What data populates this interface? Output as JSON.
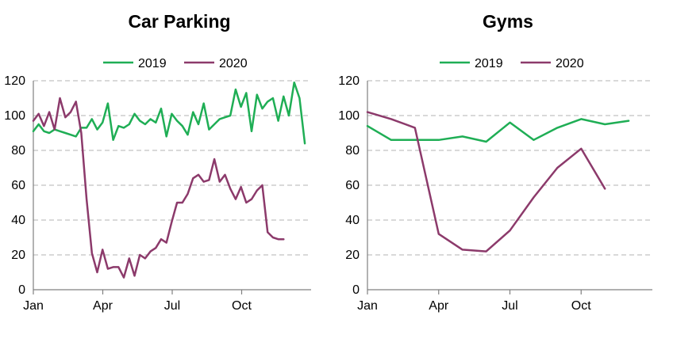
{
  "colors": {
    "s2019": "#1fae55",
    "s2020": "#8c3a6b"
  },
  "chart_data": [
    {
      "type": "line",
      "title": "Car Parking",
      "ylim": [
        0,
        120
      ],
      "yticks": [
        0,
        20,
        40,
        60,
        80,
        100,
        120
      ],
      "xlim": [
        0,
        12
      ],
      "xticks": [
        {
          "label": "Jan",
          "x": 0
        },
        {
          "label": "Apr",
          "x": 3
        },
        {
          "label": "Jul",
          "x": 6
        },
        {
          "label": "Oct",
          "x": 9
        }
      ],
      "grid": true,
      "legend_position": "top",
      "series": [
        {
          "name": "2019",
          "x": [
            0,
            0.23,
            0.46,
            0.69,
            0.92,
            1.15,
            1.38,
            1.61,
            1.84,
            2.07,
            2.3,
            2.53,
            2.76,
            2.99,
            3.22,
            3.45,
            3.68,
            3.91,
            4.14,
            4.37,
            4.6,
            4.83,
            5.06,
            5.29,
            5.52,
            5.75,
            5.98,
            6.21,
            6.44,
            6.67,
            6.9,
            7.13,
            7.36,
            7.59,
            7.82,
            8.05,
            8.28,
            8.51,
            8.74,
            8.97,
            9.2,
            9.43,
            9.66,
            9.89,
            10.12,
            10.35,
            10.58,
            10.81,
            11.04,
            11.27,
            11.5,
            11.73
          ],
          "values": [
            91,
            95,
            91,
            90,
            92,
            91,
            90,
            89,
            88,
            93,
            93,
            98,
            92,
            96,
            107,
            86,
            94,
            93,
            95,
            101,
            97,
            95,
            98,
            96,
            104,
            88,
            101,
            97,
            94,
            89,
            102,
            95,
            107,
            92,
            95,
            98,
            99,
            100,
            115,
            105,
            113,
            91,
            112,
            104,
            108,
            110,
            97,
            111,
            100,
            119,
            110,
            84
          ]
        },
        {
          "name": "2020",
          "x": [
            0,
            0.23,
            0.46,
            0.69,
            0.92,
            1.15,
            1.38,
            1.61,
            1.84,
            2.07,
            2.3,
            2.53,
            2.76,
            2.99,
            3.22,
            3.45,
            3.68,
            3.91,
            4.14,
            4.37,
            4.6,
            4.83,
            5.06,
            5.29,
            5.52,
            5.75,
            5.98,
            6.21,
            6.44,
            6.67,
            6.9,
            7.13,
            7.36,
            7.59,
            7.82,
            8.05,
            8.28,
            8.51,
            8.74,
            8.97,
            9.2,
            9.43,
            9.66,
            9.89,
            10.12,
            10.35,
            10.58,
            10.81
          ],
          "values": [
            97,
            101,
            94,
            102,
            92,
            110,
            99,
            102,
            108,
            90,
            52,
            21,
            10,
            23,
            12,
            13,
            13,
            7,
            18,
            8,
            20,
            18,
            22,
            24,
            29,
            27,
            39,
            50,
            50,
            55,
            64,
            66,
            62,
            63,
            75,
            62,
            66,
            58,
            52,
            59,
            50,
            52,
            57,
            60,
            33,
            30,
            29,
            29
          ]
        }
      ]
    },
    {
      "type": "line",
      "title": "Gyms",
      "ylim": [
        0,
        120
      ],
      "yticks": [
        0,
        20,
        40,
        60,
        80,
        100,
        120
      ],
      "xlim": [
        0,
        12
      ],
      "xticks": [
        {
          "label": "Jan",
          "x": 0
        },
        {
          "label": "Apr",
          "x": 3
        },
        {
          "label": "Jul",
          "x": 6
        },
        {
          "label": "Oct",
          "x": 9
        }
      ],
      "grid": true,
      "legend_position": "top",
      "series": [
        {
          "name": "2019",
          "x": [
            0,
            1,
            2,
            3,
            4,
            5,
            6,
            7,
            8,
            9,
            10,
            11
          ],
          "values": [
            94,
            86,
            86,
            86,
            88,
            85,
            96,
            86,
            93,
            98,
            95,
            97
          ]
        },
        {
          "name": "2020",
          "x": [
            0,
            1,
            2,
            3,
            4,
            5,
            6,
            7,
            8,
            9,
            10
          ],
          "values": [
            102,
            98,
            93,
            32,
            23,
            22,
            34,
            53,
            70,
            81,
            58
          ]
        }
      ]
    }
  ]
}
